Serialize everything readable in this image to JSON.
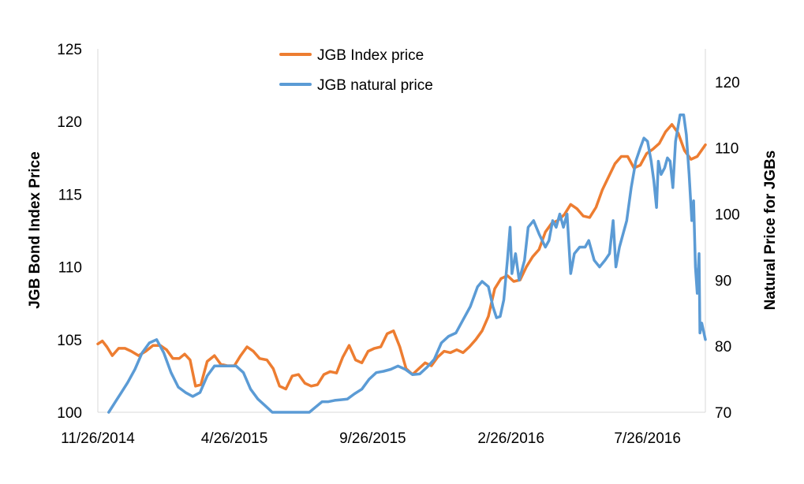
{
  "chart_data": {
    "type": "line",
    "title": "",
    "x_tick_labels": [
      "11/26/2014",
      "4/26/2015",
      "9/26/2015",
      "2/26/2016",
      "7/26/2016"
    ],
    "x_tick_dates": [
      "2014-11-26",
      "2015-04-26",
      "2015-09-26",
      "2016-02-26",
      "2016-07-26"
    ],
    "xlim": [
      "2014-11-26",
      "2016-09-28"
    ],
    "left_axis": {
      "label": "JGB Bond Index Price",
      "ylim": [
        100,
        125
      ],
      "ticks": [
        100,
        105,
        110,
        115,
        120,
        125
      ]
    },
    "right_axis": {
      "label": "Natural Price for JGBs",
      "ylim": [
        70,
        125
      ],
      "ticks": [
        70,
        80,
        90,
        100,
        110,
        120
      ]
    },
    "legend": {
      "placement": "top-center"
    },
    "grid": false,
    "series": [
      {
        "name": "JGB Index price",
        "axis": "left",
        "color": "#ED7D31",
        "points": [
          [
            "2014-11-26",
            104.7
          ],
          [
            "2014-12-01",
            104.9
          ],
          [
            "2014-12-06",
            104.5
          ],
          [
            "2014-12-12",
            103.9
          ],
          [
            "2014-12-19",
            104.4
          ],
          [
            "2014-12-26",
            104.4
          ],
          [
            "2015-01-02",
            104.2
          ],
          [
            "2015-01-10",
            103.9
          ],
          [
            "2015-01-18",
            104.2
          ],
          [
            "2015-01-26",
            104.6
          ],
          [
            "2015-02-03",
            104.6
          ],
          [
            "2015-02-10",
            104.3
          ],
          [
            "2015-02-17",
            103.7
          ],
          [
            "2015-02-24",
            103.7
          ],
          [
            "2015-03-02",
            104.0
          ],
          [
            "2015-03-08",
            103.6
          ],
          [
            "2015-03-14",
            101.8
          ],
          [
            "2015-03-20",
            101.9
          ],
          [
            "2015-03-27",
            103.5
          ],
          [
            "2015-04-04",
            103.9
          ],
          [
            "2015-04-11",
            103.3
          ],
          [
            "2015-04-18",
            103.2
          ],
          [
            "2015-04-26",
            103.2
          ],
          [
            "2015-05-03",
            103.9
          ],
          [
            "2015-05-10",
            104.5
          ],
          [
            "2015-05-17",
            104.2
          ],
          [
            "2015-05-24",
            103.7
          ],
          [
            "2015-06-01",
            103.6
          ],
          [
            "2015-06-08",
            103.0
          ],
          [
            "2015-06-15",
            101.8
          ],
          [
            "2015-06-22",
            101.6
          ],
          [
            "2015-06-29",
            102.5
          ],
          [
            "2015-07-06",
            102.6
          ],
          [
            "2015-07-13",
            102.0
          ],
          [
            "2015-07-20",
            101.8
          ],
          [
            "2015-07-27",
            101.9
          ],
          [
            "2015-08-03",
            102.6
          ],
          [
            "2015-08-10",
            102.8
          ],
          [
            "2015-08-17",
            102.7
          ],
          [
            "2015-08-24",
            103.8
          ],
          [
            "2015-08-31",
            104.6
          ],
          [
            "2015-09-07",
            103.6
          ],
          [
            "2015-09-14",
            103.4
          ],
          [
            "2015-09-21",
            104.2
          ],
          [
            "2015-09-28",
            104.4
          ],
          [
            "2015-10-05",
            104.5
          ],
          [
            "2015-10-12",
            105.4
          ],
          [
            "2015-10-19",
            105.6
          ],
          [
            "2015-10-26",
            104.5
          ],
          [
            "2015-11-02",
            103.0
          ],
          [
            "2015-11-09",
            102.6
          ],
          [
            "2015-11-16",
            103.0
          ],
          [
            "2015-11-23",
            103.4
          ],
          [
            "2015-11-30",
            103.2
          ],
          [
            "2015-12-07",
            103.8
          ],
          [
            "2015-12-14",
            104.2
          ],
          [
            "2015-12-21",
            104.1
          ],
          [
            "2015-12-28",
            104.3
          ],
          [
            "2016-01-04",
            104.1
          ],
          [
            "2016-01-11",
            104.5
          ],
          [
            "2016-01-18",
            105.0
          ],
          [
            "2016-01-25",
            105.6
          ],
          [
            "2016-02-01",
            106.6
          ],
          [
            "2016-02-08",
            108.5
          ],
          [
            "2016-02-15",
            109.2
          ],
          [
            "2016-02-22",
            109.4
          ],
          [
            "2016-02-29",
            109.0
          ],
          [
            "2016-03-07",
            109.1
          ],
          [
            "2016-03-14",
            110.0
          ],
          [
            "2016-03-21",
            110.7
          ],
          [
            "2016-03-28",
            111.2
          ],
          [
            "2016-04-04",
            112.4
          ],
          [
            "2016-04-11",
            113.0
          ],
          [
            "2016-04-18",
            113.2
          ],
          [
            "2016-04-25",
            113.6
          ],
          [
            "2016-05-02",
            114.3
          ],
          [
            "2016-05-09",
            114.0
          ],
          [
            "2016-05-16",
            113.5
          ],
          [
            "2016-05-23",
            113.4
          ],
          [
            "2016-05-30",
            114.1
          ],
          [
            "2016-06-06",
            115.3
          ],
          [
            "2016-06-13",
            116.2
          ],
          [
            "2016-06-20",
            117.1
          ],
          [
            "2016-06-27",
            117.6
          ],
          [
            "2016-07-04",
            117.6
          ],
          [
            "2016-07-11",
            116.8
          ],
          [
            "2016-07-18",
            117.0
          ],
          [
            "2016-07-25",
            117.8
          ],
          [
            "2016-08-01",
            118.1
          ],
          [
            "2016-08-08",
            118.5
          ],
          [
            "2016-08-15",
            119.3
          ],
          [
            "2016-08-22",
            119.8
          ],
          [
            "2016-08-29",
            119.2
          ],
          [
            "2016-09-05",
            118.0
          ],
          [
            "2016-09-12",
            117.4
          ],
          [
            "2016-09-19",
            117.6
          ],
          [
            "2016-09-28",
            118.4
          ]
        ]
      },
      {
        "name": "JGB natural price",
        "axis": "right",
        "color": "#5B9BD5",
        "points": [
          [
            "2014-12-08",
            70.0
          ],
          [
            "2014-12-15",
            71.5
          ],
          [
            "2014-12-22",
            73.0
          ],
          [
            "2014-12-29",
            74.5
          ],
          [
            "2015-01-06",
            76.5
          ],
          [
            "2015-01-14",
            79.0
          ],
          [
            "2015-01-22",
            80.5
          ],
          [
            "2015-01-30",
            81.0
          ],
          [
            "2015-02-07",
            79.0
          ],
          [
            "2015-02-15",
            76.0
          ],
          [
            "2015-02-23",
            73.8
          ],
          [
            "2015-03-03",
            73.0
          ],
          [
            "2015-03-11",
            72.4
          ],
          [
            "2015-03-19",
            73.0
          ],
          [
            "2015-03-27",
            75.5
          ],
          [
            "2015-04-04",
            77.0
          ],
          [
            "2015-04-12",
            77.0
          ],
          [
            "2015-04-20",
            77.0
          ],
          [
            "2015-04-28",
            77.0
          ],
          [
            "2015-05-06",
            76.0
          ],
          [
            "2015-05-14",
            73.5
          ],
          [
            "2015-05-22",
            72.0
          ],
          [
            "2015-05-30",
            71.0
          ],
          [
            "2015-06-07",
            70.0
          ],
          [
            "2015-07-18",
            70.0
          ],
          [
            "2015-07-25",
            70.8
          ],
          [
            "2015-08-01",
            71.6
          ],
          [
            "2015-08-08",
            71.6
          ],
          [
            "2015-08-15",
            71.8
          ],
          [
            "2015-08-22",
            71.9
          ],
          [
            "2015-08-29",
            72.0
          ],
          [
            "2015-09-06",
            72.8
          ],
          [
            "2015-09-14",
            73.5
          ],
          [
            "2015-09-22",
            75.0
          ],
          [
            "2015-09-30",
            76.0
          ],
          [
            "2015-10-08",
            76.2
          ],
          [
            "2015-10-16",
            76.5
          ],
          [
            "2015-10-24",
            77.0
          ],
          [
            "2015-11-01",
            76.5
          ],
          [
            "2015-11-09",
            75.7
          ],
          [
            "2015-11-17",
            75.8
          ],
          [
            "2015-11-25",
            76.8
          ],
          [
            "2015-12-03",
            78.0
          ],
          [
            "2015-12-11",
            80.5
          ],
          [
            "2015-12-19",
            81.5
          ],
          [
            "2015-12-27",
            82.0
          ],
          [
            "2016-01-04",
            84.0
          ],
          [
            "2016-01-12",
            86.0
          ],
          [
            "2016-01-20",
            89.0
          ],
          [
            "2016-01-25",
            89.8
          ],
          [
            "2016-02-01",
            89.0
          ],
          [
            "2016-02-06",
            86.0
          ],
          [
            "2016-02-10",
            84.3
          ],
          [
            "2016-02-14",
            84.5
          ],
          [
            "2016-02-18",
            87.0
          ],
          [
            "2016-02-22",
            93.0
          ],
          [
            "2016-02-25",
            98.0
          ],
          [
            "2016-02-27",
            91.0
          ],
          [
            "2016-03-02",
            94.0
          ],
          [
            "2016-03-06",
            90.0
          ],
          [
            "2016-03-12",
            93.0
          ],
          [
            "2016-03-16",
            98.0
          ],
          [
            "2016-03-22",
            99.0
          ],
          [
            "2016-03-28",
            97.0
          ],
          [
            "2016-04-04",
            95.0
          ],
          [
            "2016-04-08",
            96.0
          ],
          [
            "2016-04-12",
            99.0
          ],
          [
            "2016-04-16",
            98.0
          ],
          [
            "2016-04-20",
            100.0
          ],
          [
            "2016-04-24",
            98.0
          ],
          [
            "2016-04-28",
            100.0
          ],
          [
            "2016-05-02",
            91.0
          ],
          [
            "2016-05-06",
            94.0
          ],
          [
            "2016-05-12",
            95.0
          ],
          [
            "2016-05-18",
            95.0
          ],
          [
            "2016-05-22",
            96.0
          ],
          [
            "2016-05-28",
            93.0
          ],
          [
            "2016-06-03",
            92.0
          ],
          [
            "2016-06-09",
            93.0
          ],
          [
            "2016-06-14",
            94.0
          ],
          [
            "2016-06-18",
            99.0
          ],
          [
            "2016-06-21",
            92.0
          ],
          [
            "2016-06-25",
            95.0
          ],
          [
            "2016-06-29",
            97.0
          ],
          [
            "2016-07-03",
            99.0
          ],
          [
            "2016-07-08",
            104.0
          ],
          [
            "2016-07-13",
            108.0
          ],
          [
            "2016-07-18",
            110.0
          ],
          [
            "2016-07-22",
            111.5
          ],
          [
            "2016-07-26",
            111.0
          ],
          [
            "2016-07-30",
            108.0
          ],
          [
            "2016-08-02",
            105.0
          ],
          [
            "2016-08-05",
            101.0
          ],
          [
            "2016-08-07",
            108.0
          ],
          [
            "2016-08-10",
            106.0
          ],
          [
            "2016-08-14",
            107.0
          ],
          [
            "2016-08-17",
            108.5
          ],
          [
            "2016-08-20",
            108.0
          ],
          [
            "2016-08-23",
            104.0
          ],
          [
            "2016-08-26",
            111.0
          ],
          [
            "2016-08-31",
            115.0
          ],
          [
            "2016-09-04",
            115.0
          ],
          [
            "2016-09-07",
            112.0
          ],
          [
            "2016-09-10",
            106.0
          ],
          [
            "2016-09-13",
            99.0
          ],
          [
            "2016-09-15",
            102.0
          ],
          [
            "2016-09-17",
            92.0
          ],
          [
            "2016-09-19",
            88.0
          ],
          [
            "2016-09-21",
            94.0
          ],
          [
            "2016-09-22",
            82.0
          ],
          [
            "2016-09-24",
            83.5
          ],
          [
            "2016-09-28",
            81.0
          ]
        ]
      }
    ]
  }
}
